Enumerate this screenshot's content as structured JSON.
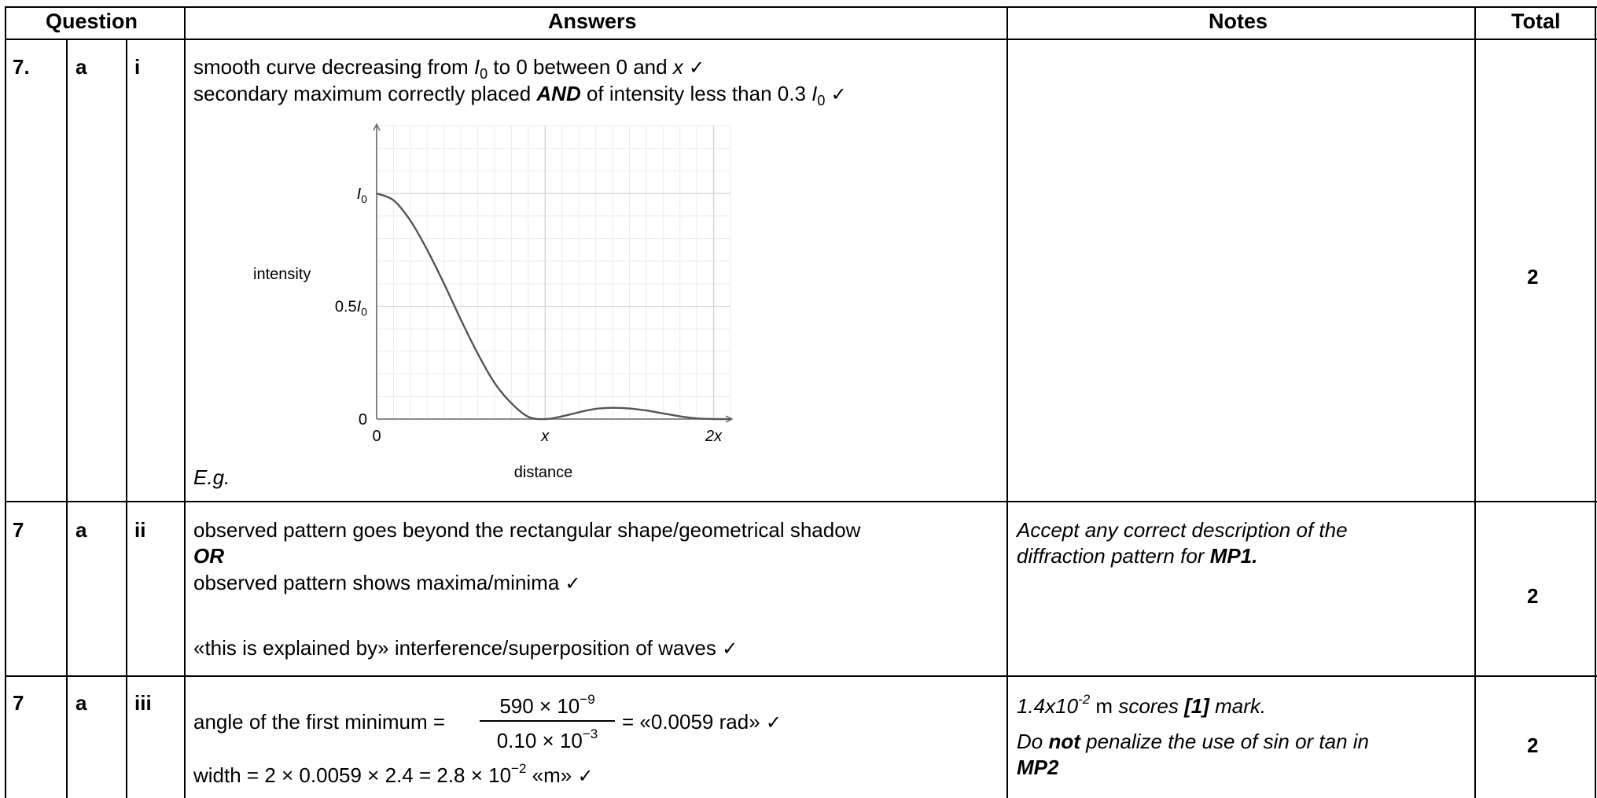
{
  "header": {
    "question": "Question",
    "answers": "Answers",
    "notes": "Notes",
    "total": "Total"
  },
  "rows": [
    {
      "num": "7.",
      "part": "a",
      "sub": "i",
      "line1": {
        "a": "smooth curve decreasing from ",
        "I": "I",
        "sub0": "0",
        "b": " to 0 between 0 and ",
        "x": "x",
        "check": "✓"
      },
      "line2": {
        "a": "secondary maximum correctly placed ",
        "and": "AND",
        "b": " of intensity less than 0.3 ",
        "I": "I",
        "sub0": "0",
        "check": "✓"
      },
      "eg": "E.g.",
      "notes": "",
      "total": "2"
    },
    {
      "num": "7",
      "part": "a",
      "sub": "ii",
      "line1": "observed pattern goes beyond the rectangular shape/geometrical shadow",
      "or": "OR",
      "line2": {
        "text": "observed pattern shows maxima/minima ",
        "check": "✓"
      },
      "line3": {
        "text": "«this is explained by» interference/superposition of waves ",
        "check": "✓"
      },
      "notes": {
        "line1": "Accept any correct description of the",
        "line2a": "diffraction pattern for ",
        "mp": "MP1."
      },
      "total": "2"
    },
    {
      "num": "7",
      "part": "a",
      "sub": "iii",
      "angle": {
        "label": "angle of the first minimum ",
        "eq1": "=",
        "numerator": "590 × 10",
        "num_exp": "−9",
        "denominator": "0.10 × 10",
        "den_exp": "−3",
        "result": "= «0.0059 rad»",
        "check": "✓"
      },
      "width": {
        "label": "width ",
        "expr": "= 2 × 0.0059 × 2.4 = 2.8 × 10",
        "exp": "−2",
        "unit": " «m» ",
        "check": "✓"
      },
      "notes": {
        "n1": {
          "val": "1.4x10",
          "exp": "-2",
          "m": " m ",
          "scores": "scores ",
          "mark": "[1]",
          "tail": " mark."
        },
        "n2": {
          "a": "Do ",
          "not": "not",
          "b": " penalize the use of sin or tan in",
          "mp2": "MP2"
        }
      },
      "total": "2"
    }
  ],
  "chart_data": {
    "type": "line",
    "xlabel": "distance",
    "ylabel": "intensity",
    "x_ticks": [
      "0",
      "x",
      "2x"
    ],
    "y_ticks": [
      "0",
      "0.5I0",
      "I0"
    ],
    "xlim": [
      0,
      2.1
    ],
    "ylim": [
      0,
      1.3
    ],
    "grid": true,
    "series": [
      {
        "x": [
          0,
          0.1,
          0.2,
          0.3,
          0.4,
          0.5,
          0.6,
          0.7,
          0.8,
          0.9,
          1.0,
          1.1,
          1.2,
          1.3,
          1.4,
          1.5,
          1.6,
          1.7,
          1.8,
          1.9,
          2.0,
          2.1
        ],
        "y": [
          1.0,
          0.97,
          0.88,
          0.75,
          0.6,
          0.44,
          0.29,
          0.16,
          0.07,
          0.01,
          0.0,
          0.012,
          0.03,
          0.045,
          0.05,
          0.047,
          0.038,
          0.025,
          0.012,
          0.003,
          0.0,
          0.0
        ]
      }
    ],
    "color": "#555555"
  }
}
